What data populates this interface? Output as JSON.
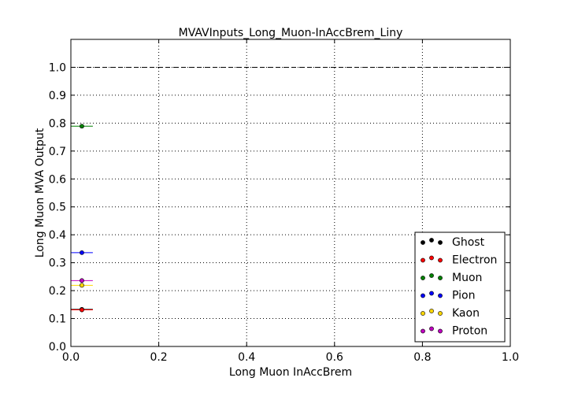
{
  "chart_data": {
    "type": "scatter",
    "title": "MVAVInputs_Long_Muon-InAccBrem_Liny",
    "xlabel": "Long Muon InAccBrem",
    "ylabel": "Long Muon MVA Output",
    "xlim": [
      0.0,
      1.0
    ],
    "ylim": [
      0.0,
      1.1
    ],
    "xticks": [
      "0.0",
      "0.2",
      "0.4",
      "0.6",
      "0.8",
      "1.0"
    ],
    "xtick_values": [
      0.0,
      0.2,
      0.4,
      0.6,
      0.8,
      1.0
    ],
    "yticks": [
      "0.0",
      "0.1",
      "0.2",
      "0.3",
      "0.4",
      "0.5",
      "0.6",
      "0.7",
      "0.8",
      "0.9",
      "1.0"
    ],
    "ytick_values": [
      0.0,
      0.1,
      0.2,
      0.3,
      0.4,
      0.5,
      0.6,
      0.7,
      0.8,
      0.9,
      1.0
    ],
    "grid": true,
    "reference_line": {
      "y": 1.0,
      "style": "dashed"
    },
    "legend_position": "lower-right",
    "series": [
      {
        "name": "Ghost",
        "color": "#000000",
        "points": [
          {
            "x": 0.025,
            "xerr": 0.025,
            "y": 0.133
          }
        ]
      },
      {
        "name": "Electron",
        "color": "#ff0000",
        "points": [
          {
            "x": 0.025,
            "xerr": 0.025,
            "y": 0.131
          }
        ]
      },
      {
        "name": "Muon",
        "color": "#008000",
        "points": [
          {
            "x": 0.025,
            "xerr": 0.025,
            "y": 0.789
          }
        ]
      },
      {
        "name": "Pion",
        "color": "#0000ff",
        "points": [
          {
            "x": 0.025,
            "xerr": 0.025,
            "y": 0.336
          }
        ]
      },
      {
        "name": "Kaon",
        "color": "#ffd700",
        "points": [
          {
            "x": 0.025,
            "xerr": 0.025,
            "y": 0.219
          }
        ]
      },
      {
        "name": "Proton",
        "color": "#bf00bf",
        "points": [
          {
            "x": 0.025,
            "xerr": 0.025,
            "y": 0.236
          }
        ]
      }
    ]
  }
}
